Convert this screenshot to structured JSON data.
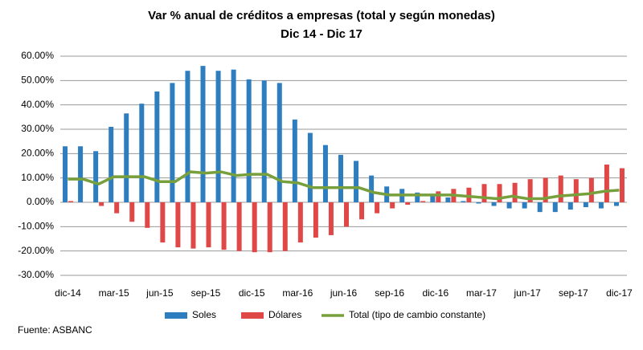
{
  "chart_data": {
    "type": "bar",
    "title": "Var % anual de créditos a empresas (total y según monedas)",
    "subtitle": "Dic 14 - Dic 17",
    "categories": [
      "dic-14",
      null,
      null,
      "mar-15",
      null,
      null,
      "jun-15",
      null,
      null,
      "sep-15",
      null,
      null,
      "dic-15",
      null,
      null,
      "mar-16",
      null,
      null,
      "jun-16",
      null,
      null,
      "sep-16",
      null,
      null,
      "dic-16",
      null,
      null,
      "mar-17",
      null,
      null,
      "jun-17",
      null,
      null,
      "sep-17",
      null,
      null,
      "dic-17"
    ],
    "series": [
      {
        "name": "Soles",
        "color": "#2e7ebf",
        "type": "bar",
        "values": [
          23,
          23,
          21,
          31,
          36.5,
          40.5,
          45.5,
          49,
          54,
          56,
          54,
          54.5,
          50.5,
          50,
          49,
          34,
          28.5,
          23.5,
          19.5,
          17,
          11,
          6.5,
          5.5,
          4,
          3,
          2,
          0.5,
          -0.5,
          -1.5,
          -2.5,
          -2.5,
          -4,
          -4,
          -3,
          -2,
          -2.5,
          -1.5
        ]
      },
      {
        "name": "Dólares",
        "color": "#e04848",
        "type": "bar",
        "values": [
          0.5,
          0,
          -1.5,
          -4.5,
          -8,
          -10.5,
          -16.5,
          -18.5,
          -19,
          -18.5,
          -19.5,
          -20,
          -20.5,
          -20.5,
          -20,
          -16.5,
          -14.5,
          -13.5,
          -10,
          -7,
          -4.5,
          -2.5,
          -1,
          0.5,
          4.5,
          5.5,
          6,
          7.5,
          7.5,
          8,
          9.5,
          10,
          11,
          9.5,
          10,
          15.5,
          14
        ]
      },
      {
        "name": "Total (tipo de cambio constante)",
        "color": "#77a03c",
        "type": "line",
        "values": [
          9.5,
          9.5,
          7.5,
          10.5,
          10.5,
          10.5,
          8.5,
          8.5,
          12.5,
          12,
          12.5,
          11,
          11.5,
          11.5,
          8.5,
          8,
          6,
          6,
          6,
          6,
          4,
          3,
          3,
          3,
          3,
          3,
          2.5,
          2,
          1.5,
          2.5,
          1.5,
          1.5,
          2.5,
          3,
          3.5,
          4.5,
          5
        ]
      }
    ],
    "ylim": [
      -30,
      60
    ],
    "yticks": [
      {
        "value": -30,
        "label": "-30.00%"
      },
      {
        "value": -20,
        "label": "-20.00%"
      },
      {
        "value": -10,
        "label": "-10.00%"
      },
      {
        "value": 0,
        "label": "0.00%"
      },
      {
        "value": 10,
        "label": "10.00%"
      },
      {
        "value": 20,
        "label": "20.00%"
      },
      {
        "value": 30,
        "label": "30.00%"
      },
      {
        "value": 40,
        "label": "40.00%"
      },
      {
        "value": 50,
        "label": "50.00%"
      },
      {
        "value": 60,
        "label": "60.00%"
      }
    ],
    "grid": true,
    "legend": "bottom",
    "source": "Fuente: ASBANC"
  }
}
